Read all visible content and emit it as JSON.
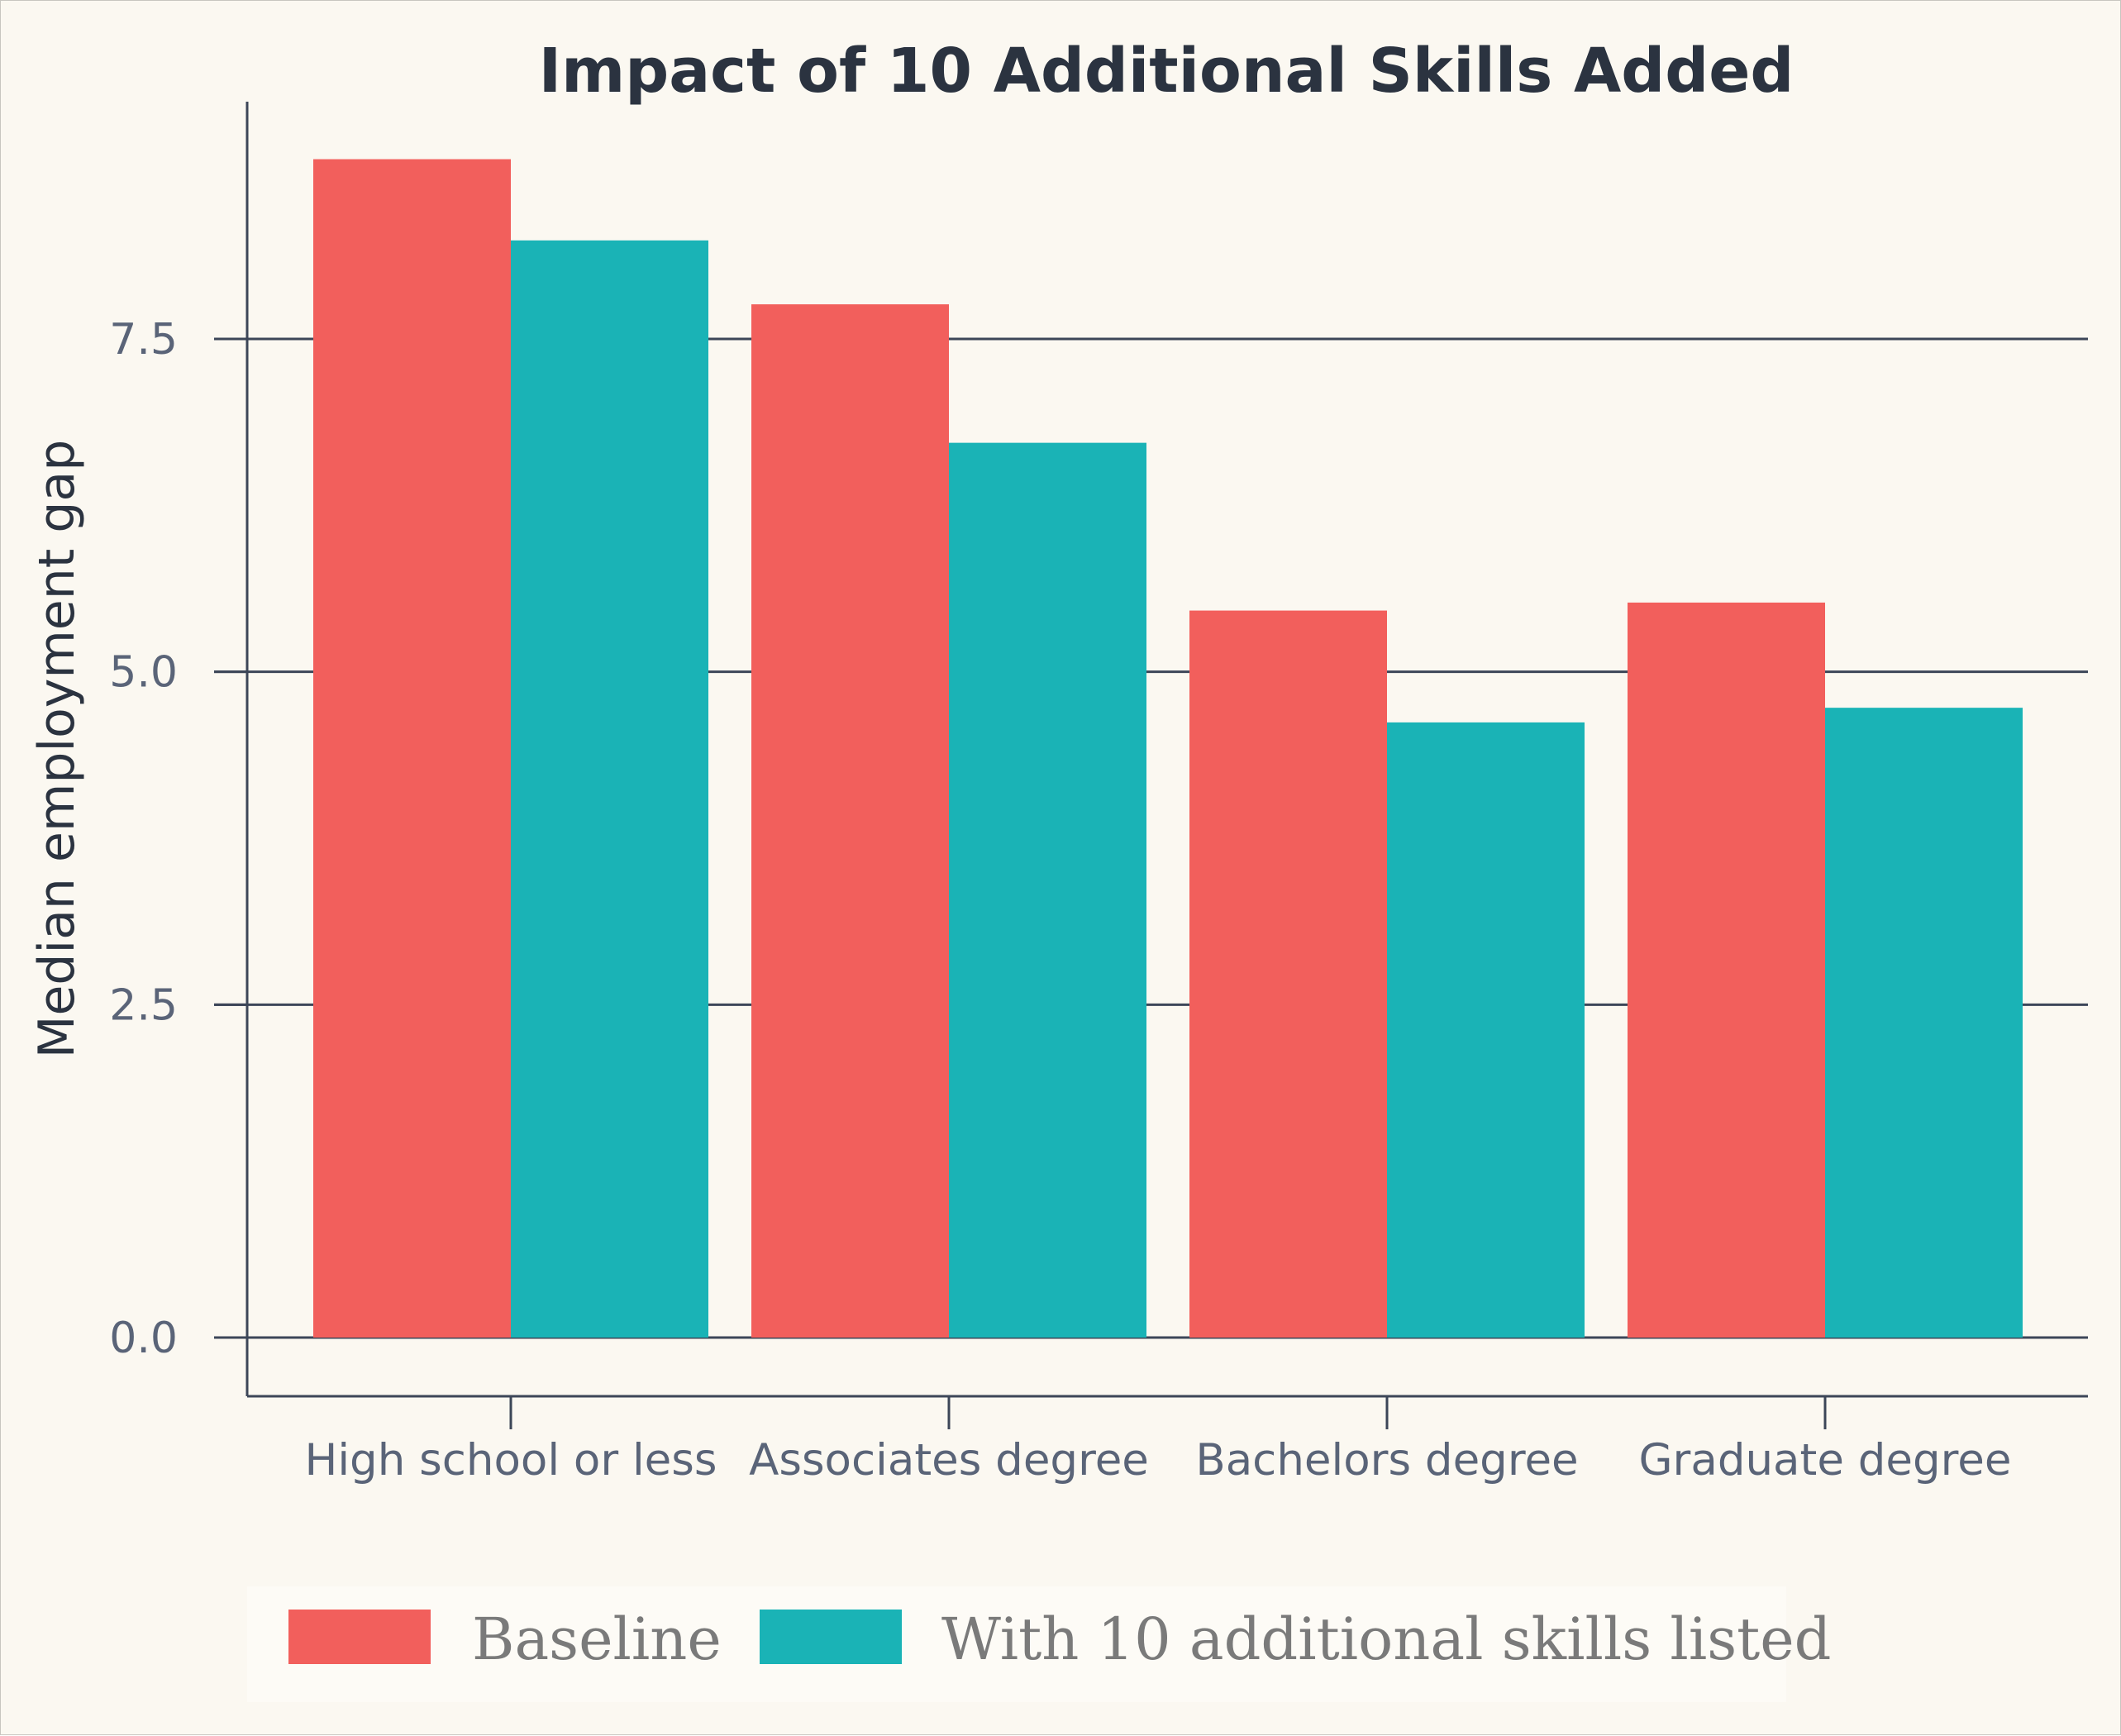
{
  "chart_data": {
    "type": "bar",
    "title": "Impact of 10 Additional Skills Added",
    "xlabel": "",
    "ylabel": "Median employment gap",
    "categories": [
      "High school or less",
      "Associates degree",
      "Bachelors degree",
      "Graduate degree"
    ],
    "series": [
      {
        "name": "Baseline",
        "color": "#f25f5c",
        "values": [
          8.85,
          7.76,
          5.46,
          5.52
        ]
      },
      {
        "name": "With 10 additional skills listed",
        "color": "#1ab3b6",
        "values": [
          8.24,
          6.72,
          4.62,
          4.73
        ]
      }
    ],
    "yticks": [
      0.0,
      2.5,
      5.0,
      7.5
    ],
    "ytick_labels": [
      "0.0",
      "2.5",
      "5.0",
      "7.5"
    ],
    "ylim": [
      -0.44,
      9.3
    ],
    "grid": true,
    "legend": "bottom"
  },
  "colors": {
    "background": "#fbf8f1",
    "axis": "#3c4658",
    "text": "#2b3340",
    "legend_background": "#fdfbf6"
  }
}
